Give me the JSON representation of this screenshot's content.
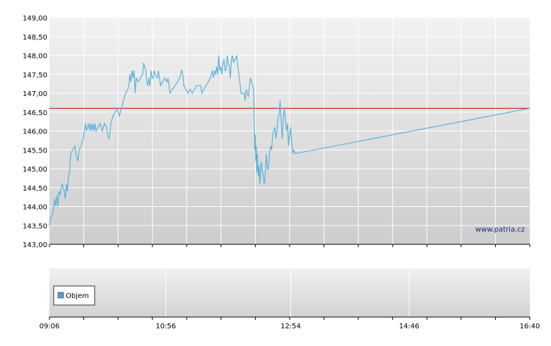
{
  "chart_data": [
    {
      "type": "line",
      "title": "",
      "xlabel": "",
      "ylabel": "",
      "ylim": [
        143.0,
        149.0
      ],
      "y_ticks": [
        "143,00",
        "143,50",
        "144,00",
        "144,50",
        "145,00",
        "145,50",
        "146,00",
        "146,50",
        "147,00",
        "147,50",
        "148,00",
        "148,50",
        "149,00"
      ],
      "x_tick_labels": [
        {
          "minutes": 546,
          "label": "09:06"
        },
        {
          "minutes": 656,
          "label": "10:56"
        },
        {
          "minutes": 774,
          "label": "12:54"
        },
        {
          "minutes": 886,
          "label": "14:46"
        },
        {
          "minutes": 1000,
          "label": "16:40"
        }
      ],
      "xlim": [
        546,
        1000
      ],
      "reference_line": {
        "value": 146.6,
        "color": "#cc0000"
      },
      "line_color": "#5ab2d9",
      "grid": true,
      "watermark": "www.patria.cz",
      "series": [
        {
          "points": [
            [
              546,
              143.5
            ],
            [
              547,
              143.7
            ],
            [
              549,
              143.8
            ],
            [
              551,
              144.2
            ],
            [
              552,
              144.0
            ],
            [
              553,
              144.3
            ],
            [
              554,
              144.0
            ],
            [
              555,
              144.4
            ],
            [
              556,
              144.3
            ],
            [
              558,
              144.6
            ],
            [
              560,
              144.4
            ],
            [
              561,
              144.2
            ],
            [
              562,
              144.6
            ],
            [
              563,
              144.4
            ],
            [
              564,
              144.8
            ],
            [
              565,
              144.9
            ],
            [
              566,
              145.4
            ],
            [
              568,
              145.5
            ],
            [
              570,
              145.6
            ],
            [
              571,
              145.4
            ],
            [
              572,
              145.3
            ],
            [
              573,
              145.2
            ],
            [
              574,
              145.5
            ],
            [
              576,
              145.6
            ],
            [
              578,
              145.8
            ],
            [
              579,
              146.0
            ],
            [
              580,
              146.2
            ],
            [
              581,
              146.0
            ],
            [
              582,
              146.1
            ],
            [
              583,
              146.2
            ],
            [
              584,
              146.0
            ],
            [
              585,
              146.2
            ],
            [
              586,
              146.0
            ],
            [
              587,
              146.2
            ],
            [
              588,
              146.0
            ],
            [
              589,
              146.2
            ],
            [
              590,
              146.0
            ],
            [
              592,
              146.1
            ],
            [
              594,
              146.2
            ],
            [
              596,
              146.0
            ],
            [
              598,
              146.2
            ],
            [
              600,
              146.1
            ],
            [
              601,
              145.9
            ],
            [
              602,
              145.8
            ],
            [
              603,
              145.9
            ],
            [
              604,
              146.2
            ],
            [
              606,
              146.4
            ],
            [
              608,
              146.5
            ],
            [
              610,
              146.6
            ],
            [
              611,
              146.5
            ],
            [
              612,
              146.4
            ],
            [
              614,
              146.6
            ],
            [
              616,
              146.8
            ],
            [
              618,
              147.0
            ],
            [
              620,
              147.1
            ],
            [
              621,
              147.2
            ],
            [
              622,
              147.5
            ],
            [
              623,
              147.3
            ],
            [
              624,
              147.6
            ],
            [
              625,
              147.4
            ],
            [
              626,
              147.6
            ],
            [
              627,
              147.0
            ],
            [
              628,
              147.4
            ],
            [
              630,
              147.3
            ],
            [
              632,
              147.4
            ],
            [
              634,
              147.5
            ],
            [
              635,
              147.8
            ],
            [
              636,
              147.7
            ],
            [
              637,
              147.6
            ],
            [
              638,
              147.3
            ],
            [
              639,
              147.2
            ],
            [
              640,
              147.4
            ],
            [
              641,
              147.2
            ],
            [
              642,
              147.6
            ],
            [
              643,
              147.4
            ],
            [
              644,
              147.4
            ],
            [
              645,
              147.6
            ],
            [
              646,
              147.5
            ],
            [
              648,
              147.4
            ],
            [
              649,
              147.6
            ],
            [
              650,
              147.4
            ],
            [
              651,
              147.2
            ],
            [
              653,
              147.3
            ],
            [
              655,
              147.4
            ],
            [
              657,
              147.3
            ],
            [
              658,
              147.4
            ],
            [
              659,
              147.2
            ],
            [
              660,
              147.0
            ],
            [
              662,
              147.1
            ],
            [
              665,
              147.2
            ],
            [
              667,
              147.3
            ],
            [
              669,
              147.4
            ],
            [
              671,
              147.6
            ],
            [
              672,
              147.5
            ],
            [
              673,
              147.2
            ],
            [
              675,
              147.1
            ],
            [
              677,
              147.0
            ],
            [
              679,
              147.1
            ],
            [
              681,
              147.0
            ],
            [
              683,
              147.1
            ],
            [
              685,
              147.2
            ],
            [
              687,
              147.2
            ],
            [
              689,
              147.2
            ],
            [
              690,
              147.0
            ],
            [
              692,
              147.1
            ],
            [
              694,
              147.2
            ],
            [
              696,
              147.3
            ],
            [
              698,
              147.4
            ],
            [
              700,
              147.6
            ],
            [
              701,
              147.4
            ],
            [
              702,
              147.6
            ],
            [
              703,
              147.5
            ],
            [
              704,
              147.7
            ],
            [
              705,
              147.5
            ],
            [
              706,
              148.0
            ],
            [
              707,
              147.6
            ],
            [
              708,
              147.7
            ],
            [
              709,
              147.5
            ],
            [
              710,
              147.8
            ],
            [
              711,
              147.9
            ],
            [
              712,
              147.6
            ],
            [
              713,
              147.6
            ],
            [
              714,
              148.0
            ],
            [
              715,
              147.8
            ],
            [
              716,
              147.7
            ],
            [
              717,
              147.4
            ],
            [
              718,
              147.9
            ],
            [
              719,
              148.0
            ],
            [
              720,
              147.8
            ],
            [
              721,
              147.9
            ],
            [
              722,
              147.9
            ],
            [
              723,
              148.0
            ],
            [
              724,
              147.7
            ],
            [
              725,
              147.5
            ],
            [
              726,
              147.3
            ],
            [
              727,
              147.0
            ],
            [
              728,
              147.0
            ],
            [
              729,
              147.0
            ],
            [
              730,
              147.0
            ],
            [
              731,
              146.8
            ],
            [
              732,
              147.1
            ],
            [
              733,
              147.0
            ],
            [
              734,
              146.9
            ],
            [
              735,
              147.2
            ],
            [
              736,
              147.4
            ],
            [
              737,
              147.3
            ],
            [
              738,
              147.2
            ],
            [
              739,
              147.1
            ],
            [
              740,
              145.5
            ],
            [
              740.5,
              145.9
            ],
            [
              741,
              145.2
            ],
            [
              741.5,
              145.6
            ],
            [
              742,
              144.9
            ],
            [
              742.5,
              145.4
            ],
            [
              743,
              145.0
            ],
            [
              743.5,
              144.8
            ],
            [
              744,
              145.1
            ],
            [
              745,
              144.6
            ],
            [
              746,
              145.2
            ],
            [
              747,
              145.0
            ],
            [
              748,
              144.8
            ],
            [
              749,
              144.6
            ],
            [
              750,
              144.9
            ],
            [
              751,
              145.4
            ],
            [
              752,
              145.0
            ],
            [
              753,
              145.0
            ],
            [
              754,
              145.4
            ],
            [
              755,
              145.6
            ],
            [
              756,
              145.5
            ],
            [
              757,
              145.9
            ],
            [
              758,
              146.0
            ],
            [
              759,
              146.1
            ],
            [
              760,
              145.8
            ],
            [
              761,
              146.0
            ],
            [
              762,
              146.3
            ],
            [
              763,
              146.4
            ],
            [
              764,
              146.8
            ],
            [
              765,
              146.3
            ],
            [
              766,
              145.8
            ],
            [
              767,
              146.3
            ],
            [
              768,
              146.6
            ],
            [
              769,
              146.3
            ],
            [
              770,
              146.0
            ],
            [
              771,
              146.2
            ],
            [
              772,
              145.6
            ],
            [
              773,
              145.9
            ],
            [
              774,
              146.1
            ],
            [
              775,
              145.7
            ],
            [
              776,
              145.4
            ],
            [
              777,
              145.5
            ],
            [
              778,
              145.4
            ],
            [
              1000,
              146.6
            ]
          ]
        }
      ]
    },
    {
      "type": "bar",
      "title": "",
      "legend": [
        {
          "name": "Objem",
          "color": "#5b9bd5"
        }
      ],
      "legend_position": "bottom-left",
      "grid": true
    }
  ]
}
